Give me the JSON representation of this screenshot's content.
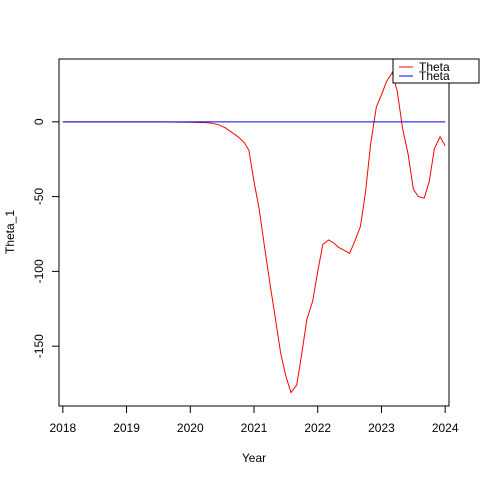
{
  "chart_data": {
    "type": "line",
    "title": "",
    "xlabel": "Year",
    "ylabel": "Theta_1",
    "xlim": [
      2017.94,
      2024.06
    ],
    "ylim": [
      -190,
      42
    ],
    "x_ticks": [
      2018,
      2019,
      2020,
      2021,
      2022,
      2023,
      2024
    ],
    "x_tick_labels": [
      "2018",
      "2019",
      "2020",
      "2021",
      "2022",
      "2023",
      "2024"
    ],
    "y_ticks": [
      0,
      -50,
      -100,
      -150
    ],
    "y_tick_labels": [
      "0",
      "-50",
      "-100",
      "-150"
    ],
    "grid": false,
    "legend": {
      "placement": "top-right",
      "entries": [
        {
          "label": "Theta",
          "color": "#ff0000"
        },
        {
          "label": "Theta",
          "color": "#0000ff"
        }
      ]
    },
    "series": [
      {
        "color": "#ff0000",
        "points": [
          [
            2018.0,
            0
          ],
          [
            2018.5,
            0
          ],
          [
            2019.0,
            0
          ],
          [
            2019.5,
            0
          ],
          [
            2020.0,
            -0.3
          ],
          [
            2020.25,
            -0.5
          ],
          [
            2020.35,
            -1
          ],
          [
            2020.45,
            -2
          ],
          [
            2020.55,
            -4
          ],
          [
            2020.65,
            -7
          ],
          [
            2020.75,
            -10
          ],
          [
            2020.85,
            -14
          ],
          [
            2020.92,
            -19
          ],
          [
            2021.0,
            -40
          ],
          [
            2021.08,
            -58
          ],
          [
            2021.17,
            -85
          ],
          [
            2021.25,
            -108
          ],
          [
            2021.33,
            -130
          ],
          [
            2021.42,
            -155
          ],
          [
            2021.5,
            -170
          ],
          [
            2021.58,
            -181
          ],
          [
            2021.67,
            -176
          ],
          [
            2021.75,
            -155
          ],
          [
            2021.83,
            -132
          ],
          [
            2021.92,
            -120
          ],
          [
            2022.0,
            -100
          ],
          [
            2022.08,
            -82
          ],
          [
            2022.17,
            -79
          ],
          [
            2022.25,
            -81
          ],
          [
            2022.33,
            -84
          ],
          [
            2022.42,
            -86
          ],
          [
            2022.5,
            -88
          ],
          [
            2022.58,
            -80
          ],
          [
            2022.67,
            -70
          ],
          [
            2022.75,
            -47
          ],
          [
            2022.83,
            -15
          ],
          [
            2022.92,
            10
          ],
          [
            2023.0,
            18
          ],
          [
            2023.08,
            27
          ],
          [
            2023.17,
            33
          ],
          [
            2023.25,
            20
          ],
          [
            2023.33,
            -4
          ],
          [
            2023.42,
            -22
          ],
          [
            2023.5,
            -45
          ],
          [
            2023.58,
            -50
          ],
          [
            2023.67,
            -51
          ],
          [
            2023.75,
            -40
          ],
          [
            2023.83,
            -18
          ],
          [
            2023.92,
            -10
          ],
          [
            2024.0,
            -16
          ]
        ]
      },
      {
        "color": "#0000ff",
        "points": [
          [
            2018.0,
            0
          ],
          [
            2024.0,
            0
          ]
        ]
      }
    ]
  }
}
